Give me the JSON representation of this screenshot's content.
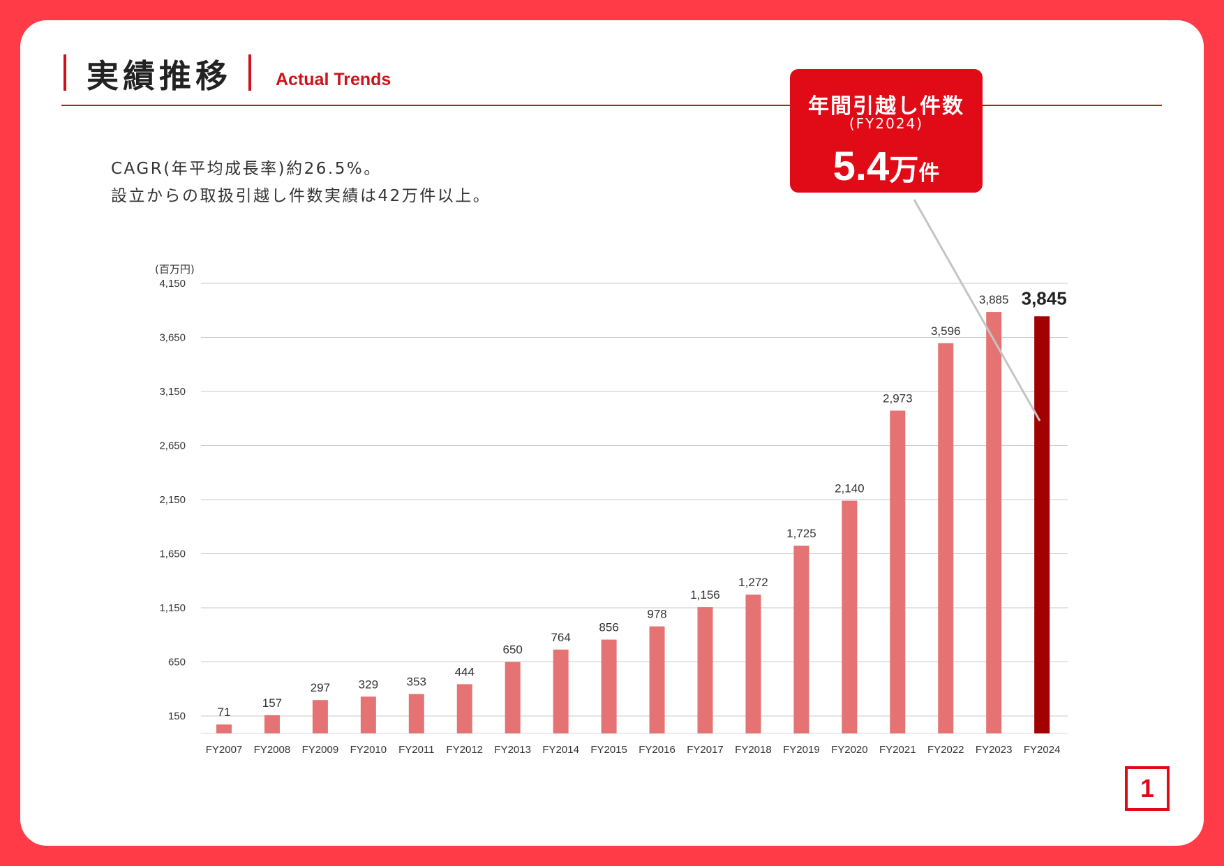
{
  "header": {
    "title_jp": "実績推移",
    "title_en": "Actual Trends"
  },
  "description": {
    "line1": "CAGR(年平均成長率)約26.5%。",
    "line2": "設立からの取扱引越し件数実績は42万件以上。"
  },
  "callout": {
    "label": "年間引越し件数",
    "period": "(FY2024)",
    "value": "5.4",
    "unit_man": "万",
    "unit_ken": "件"
  },
  "page_number": "1",
  "colors": {
    "frame": "#ff3b47",
    "accent": "#d0111b",
    "bar": "#e57373",
    "bar_highlight": "#a30000",
    "callout_bg": "#e10b17"
  },
  "chart_data": {
    "type": "bar",
    "unit_label": "(百万円)",
    "categories": [
      "FY2007",
      "FY2008",
      "FY2009",
      "FY2010",
      "FY2011",
      "FY2012",
      "FY2013",
      "FY2014",
      "FY2015",
      "FY2016",
      "FY2017",
      "FY2018",
      "FY2019",
      "FY2020",
      "FY2021",
      "FY2022",
      "FY2023",
      "FY2024"
    ],
    "values": [
      71,
      157,
      297,
      329,
      353,
      444,
      650,
      764,
      856,
      978,
      1156,
      1272,
      1725,
      2140,
      2973,
      3596,
      3885,
      3845
    ],
    "data_labels": [
      "71",
      "157",
      "297",
      "329",
      "353",
      "444",
      "650",
      "764",
      "856",
      "978",
      "1,156",
      "1,272",
      "1,725",
      "2,140",
      "2,973",
      "3,596",
      "3,885",
      "3,845"
    ],
    "highlight_index": 17,
    "y_ticks": [
      150,
      650,
      1150,
      1650,
      2150,
      2650,
      3150,
      3650,
      4150
    ],
    "y_tick_labels": [
      "150",
      "650",
      "1,150",
      "1,650",
      "2,150",
      "2,650",
      "3,150",
      "3,650",
      "4,150"
    ],
    "ylim": [
      0,
      4150
    ],
    "grid": true,
    "legend": "none"
  }
}
